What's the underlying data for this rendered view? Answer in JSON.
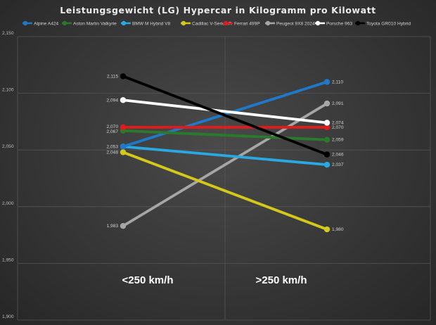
{
  "chart_data": {
    "type": "line",
    "title": "Leistungsgewicht (LG) Hypercar in Kilogramm pro Kilowatt",
    "xlabel": "",
    "ylabel": "",
    "categories": [
      "<250 km/h",
      ">250 km/h"
    ],
    "ylim": [
      1.9,
      2.15
    ],
    "yticks": [
      "1,900",
      "1,950",
      "2,000",
      "2,050",
      "2,100",
      "2,150"
    ],
    "grid": true,
    "legend": "top",
    "series": [
      {
        "name": "Alpine A424",
        "color": "#1f78c8",
        "values": [
          2.053,
          2.11
        ],
        "labels": [
          "2,053",
          "2,110"
        ]
      },
      {
        "name": "Aston Martin Valkyrie",
        "color": "#2b7a2b",
        "values": [
          2.067,
          2.059
        ],
        "labels": [
          "2,067",
          "2,059"
        ]
      },
      {
        "name": "BMW M Hybrid V8",
        "color": "#29a9e1",
        "values": [
          2.053,
          2.037
        ],
        "labels": [
          "2,053",
          "2,037"
        ]
      },
      {
        "name": "Cadillac V-Series.R",
        "color": "#d4c81a",
        "values": [
          2.048,
          1.98
        ],
        "labels": [
          "2,048",
          "1,980"
        ]
      },
      {
        "name": "Ferrari 499P",
        "color": "#e01b1b",
        "values": [
          2.07,
          2.07
        ],
        "labels": [
          "2,070",
          "2,070"
        ]
      },
      {
        "name": "Peugeot 9X8 2024",
        "color": "#a6a6a6",
        "values": [
          1.983,
          2.091
        ],
        "labels": [
          "1,983",
          "2,091"
        ]
      },
      {
        "name": "Porsche 963",
        "color": "#ffffff",
        "values": [
          2.094,
          2.074
        ],
        "labels": [
          "2,094",
          "2,074"
        ]
      },
      {
        "name": "Toyota GR010 Hybrid",
        "color": "#000000",
        "values": [
          2.115,
          2.046
        ],
        "labels": [
          "2,115",
          "2,046"
        ]
      }
    ],
    "draw_order": [
      5,
      3,
      2,
      0,
      1,
      4,
      6,
      7
    ],
    "left_label_series": [
      7,
      6,
      4,
      1,
      2,
      3,
      5
    ],
    "right_label_series": [
      0,
      6,
      4,
      1,
      7,
      2,
      3,
      5
    ]
  }
}
